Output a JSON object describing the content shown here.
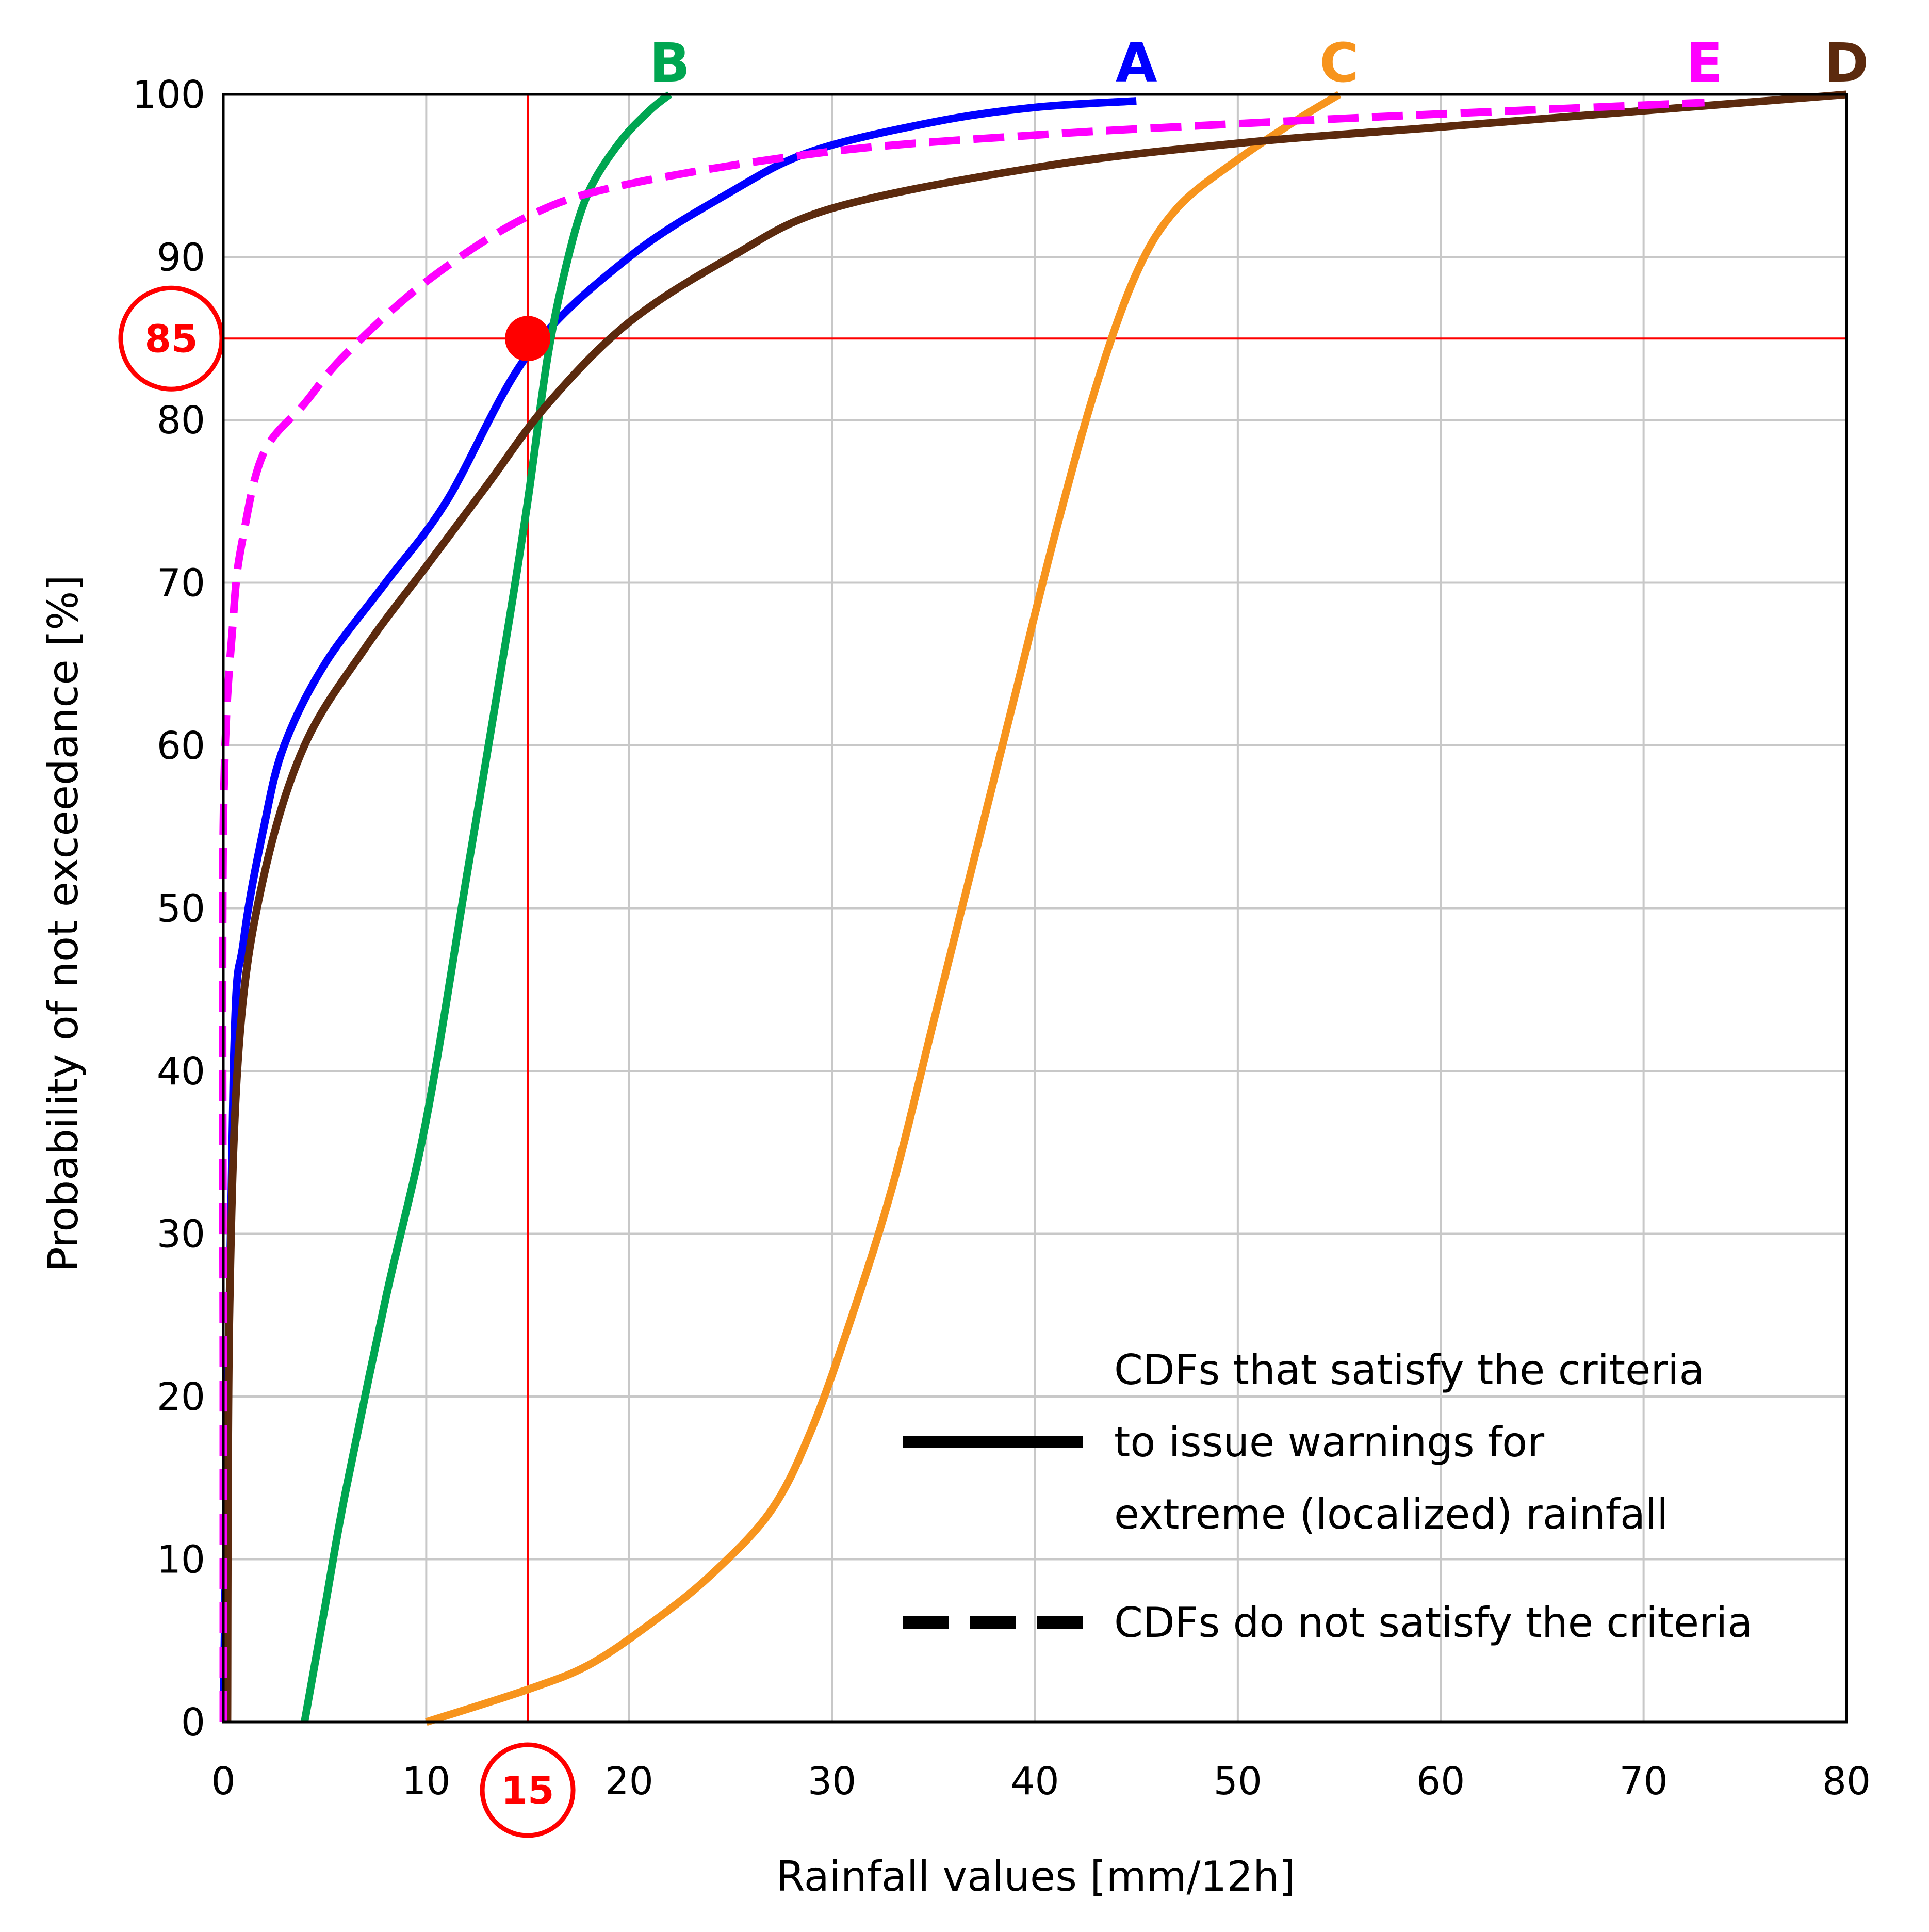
{
  "chart_data": {
    "type": "line",
    "xlabel": "Rainfall values [mm/12h]",
    "ylabel": "Probability of not exceedance [%]",
    "xlim": [
      0,
      80
    ],
    "ylim": [
      0,
      100
    ],
    "x_ticks": [
      0,
      10,
      20,
      30,
      40,
      50,
      60,
      70,
      80
    ],
    "y_ticks": [
      0,
      10,
      20,
      30,
      40,
      50,
      60,
      70,
      80,
      90,
      100
    ],
    "grid": true,
    "highlight": {
      "x": 15,
      "y": 85,
      "x_label": "15",
      "y_label": "85",
      "color": "#ff0000"
    },
    "series": [
      {
        "name": "A",
        "color": "#0000ff",
        "style": "solid",
        "points": [
          [
            0,
            0
          ],
          [
            0.5,
            40
          ],
          [
            1,
            48
          ],
          [
            2,
            55
          ],
          [
            3,
            60
          ],
          [
            5,
            65
          ],
          [
            8,
            70
          ],
          [
            11,
            75
          ],
          [
            15,
            84
          ],
          [
            20,
            90
          ],
          [
            25,
            94
          ],
          [
            29,
            96.5
          ],
          [
            35,
            98.3
          ],
          [
            40,
            99.2
          ],
          [
            45,
            99.6
          ]
        ]
      },
      {
        "name": "B",
        "color": "#00a651",
        "style": "solid",
        "points": [
          [
            4,
            0
          ],
          [
            5,
            7
          ],
          [
            6,
            14
          ],
          [
            8,
            26
          ],
          [
            10,
            37
          ],
          [
            12,
            52
          ],
          [
            14,
            67
          ],
          [
            15,
            75
          ],
          [
            16,
            84
          ],
          [
            17,
            90
          ],
          [
            18,
            94
          ],
          [
            19.5,
            97
          ],
          [
            21,
            99
          ],
          [
            22,
            100
          ]
        ]
      },
      {
        "name": "C",
        "color": "#f7941d",
        "style": "solid",
        "points": [
          [
            10,
            0
          ],
          [
            15,
            2
          ],
          [
            18,
            3.5
          ],
          [
            21,
            6
          ],
          [
            24,
            9
          ],
          [
            27,
            13
          ],
          [
            29,
            18
          ],
          [
            31,
            25
          ],
          [
            33,
            33
          ],
          [
            35,
            43
          ],
          [
            37,
            53
          ],
          [
            39,
            63
          ],
          [
            41,
            73
          ],
          [
            43,
            82
          ],
          [
            45,
            89
          ],
          [
            47,
            93
          ],
          [
            50,
            96
          ],
          [
            53,
            98.5
          ],
          [
            55,
            100
          ]
        ]
      },
      {
        "name": "D",
        "color": "#5c2a0e",
        "style": "solid",
        "points": [
          [
            0.2,
            0
          ],
          [
            0.3,
            25
          ],
          [
            0.8,
            42
          ],
          [
            2,
            52
          ],
          [
            4,
            60
          ],
          [
            7,
            66
          ],
          [
            10,
            71
          ],
          [
            13,
            76
          ],
          [
            16,
            81
          ],
          [
            20,
            86
          ],
          [
            25,
            90
          ],
          [
            30,
            93
          ],
          [
            40,
            95.5
          ],
          [
            50,
            97
          ],
          [
            60,
            98
          ],
          [
            70,
            99
          ],
          [
            80,
            100
          ]
        ]
      },
      {
        "name": "E",
        "color": "#ff00ff",
        "style": "dashed",
        "points": [
          [
            0,
            0
          ],
          [
            0,
            20
          ],
          [
            0,
            55
          ],
          [
            0.5,
            68
          ],
          [
            1,
            73
          ],
          [
            2,
            78
          ],
          [
            4,
            81
          ],
          [
            6,
            84
          ],
          [
            10,
            88.5
          ],
          [
            15,
            92.5
          ],
          [
            20,
            94.5
          ],
          [
            30,
            96.5
          ],
          [
            40,
            97.5
          ],
          [
            50,
            98.2
          ],
          [
            60,
            98.8
          ],
          [
            73,
            99.5
          ]
        ]
      }
    ]
  },
  "legend": {
    "placement": "bottom-right",
    "entries": [
      {
        "style": "solid",
        "lines": [
          "CDFs that satisfy the criteria",
          "to issue warnings for",
          "extreme (localized) rainfall"
        ]
      },
      {
        "style": "dashed",
        "lines": [
          "CDFs do not satisfy the criteria"
        ]
      }
    ]
  }
}
